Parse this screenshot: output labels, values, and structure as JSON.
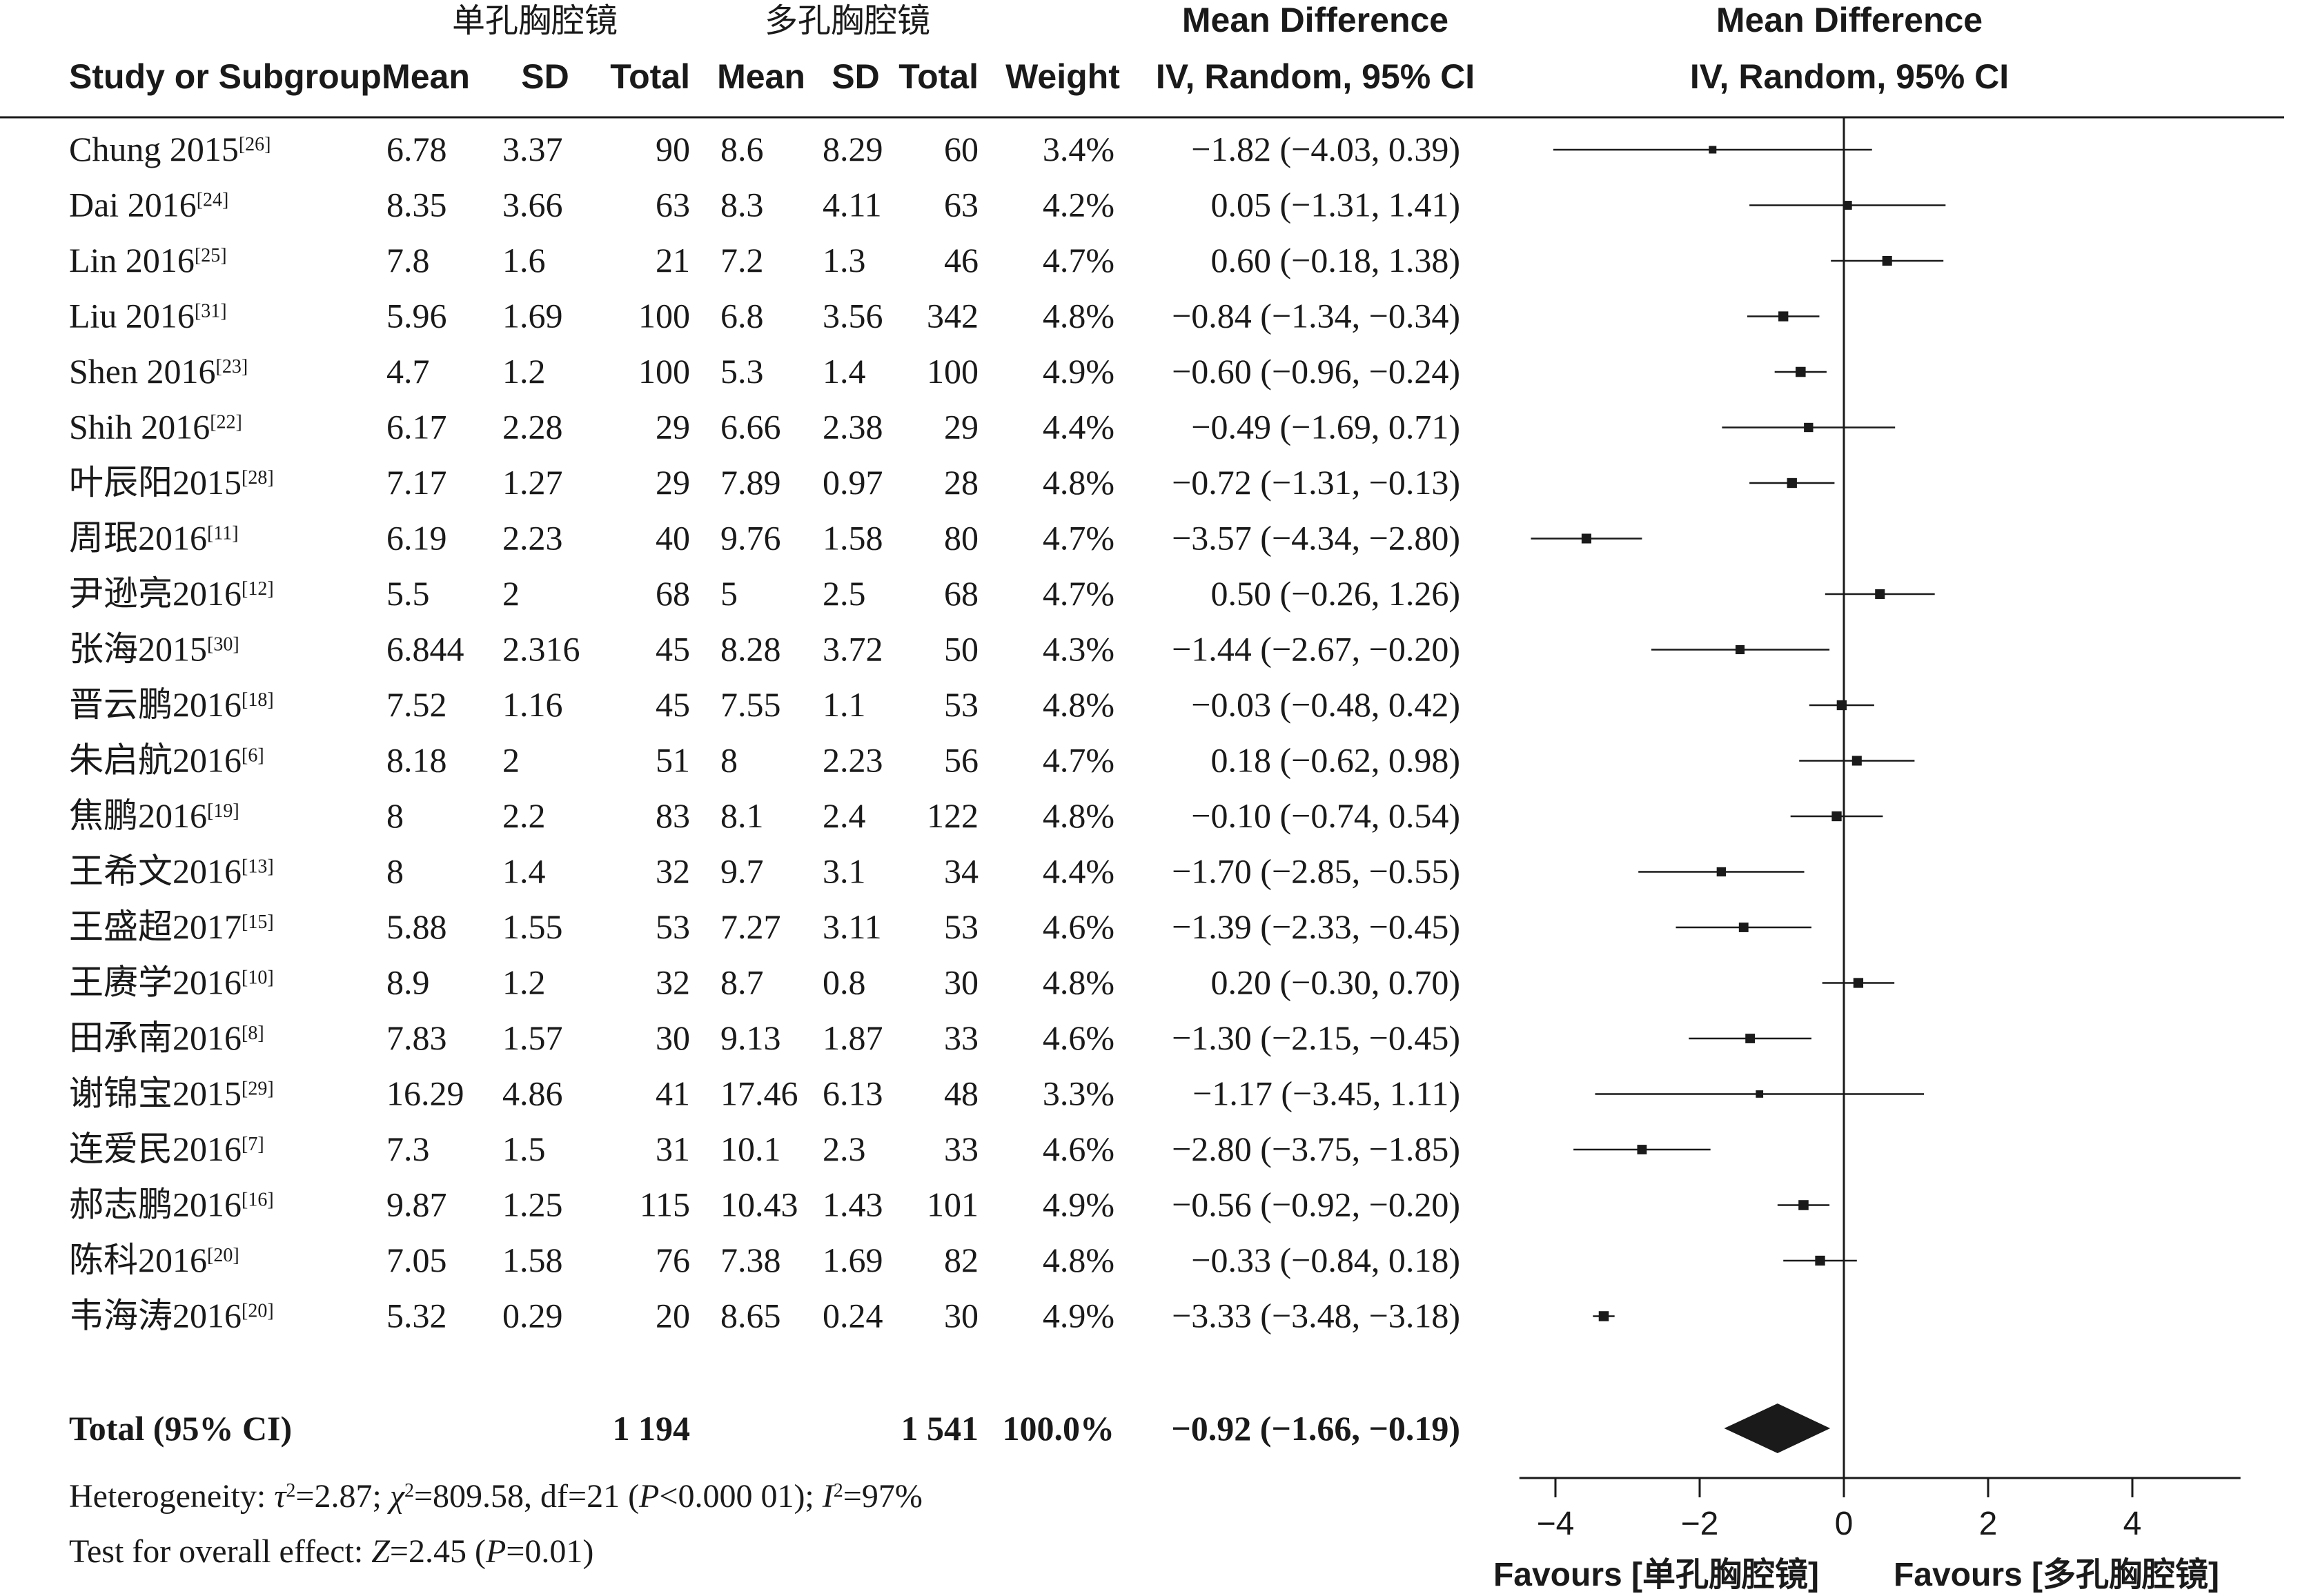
{
  "header": {
    "group1": "单孔胸腔镜",
    "group2": "多孔胸腔镜",
    "col_study": "Study or Subgroup",
    "col_mean1": "Mean",
    "col_sd1": "SD",
    "col_total1": "Total",
    "col_mean2": "Mean",
    "col_sd2": "SD",
    "col_total2": "Total",
    "col_weight": "Weight",
    "md_title": "Mean Difference",
    "md_sub": "IV, Random, 95% CI",
    "plot_title": "Mean Difference",
    "plot_sub": "IV, Random, 95% CI"
  },
  "studies": [
    {
      "name": "Chung 2015",
      "ref": "[26]",
      "mean1": "6.78",
      "sd1": "3.37",
      "total1": "90",
      "mean2": "8.6",
      "sd2": "8.29",
      "total2": "60",
      "weight": "3.4%",
      "ci_text": "−1.82 (−4.03, 0.39)"
    },
    {
      "name": "Dai 2016",
      "ref": "[24]",
      "mean1": "8.35",
      "sd1": "3.66",
      "total1": "63",
      "mean2": "8.3",
      "sd2": "4.11",
      "total2": "63",
      "weight": "4.2%",
      "ci_text": "0.05 (−1.31, 1.41)"
    },
    {
      "name": "Lin 2016",
      "ref": "[25]",
      "mean1": "7.8",
      "sd1": "1.6",
      "total1": "21",
      "mean2": "7.2",
      "sd2": "1.3",
      "total2": "46",
      "weight": "4.7%",
      "ci_text": "0.60 (−0.18, 1.38)"
    },
    {
      "name": "Liu 2016",
      "ref": "[31]",
      "mean1": "5.96",
      "sd1": "1.69",
      "total1": "100",
      "mean2": "6.8",
      "sd2": "3.56",
      "total2": "342",
      "weight": "4.8%",
      "ci_text": "−0.84 (−1.34, −0.34)"
    },
    {
      "name": "Shen 2016",
      "ref": "[23]",
      "mean1": "4.7",
      "sd1": "1.2",
      "total1": "100",
      "mean2": "5.3",
      "sd2": "1.4",
      "total2": "100",
      "weight": "4.9%",
      "ci_text": "−0.60 (−0.96, −0.24)"
    },
    {
      "name": "Shih 2016",
      "ref": "[22]",
      "mean1": "6.17",
      "sd1": "2.28",
      "total1": "29",
      "mean2": "6.66",
      "sd2": "2.38",
      "total2": "29",
      "weight": "4.4%",
      "ci_text": "−0.49 (−1.69, 0.71)"
    },
    {
      "name": "叶辰阳2015",
      "ref": "[28]",
      "mean1": "7.17",
      "sd1": "1.27",
      "total1": "29",
      "mean2": "7.89",
      "sd2": "0.97",
      "total2": "28",
      "weight": "4.8%",
      "ci_text": "−0.72 (−1.31, −0.13)"
    },
    {
      "name": "周珉2016",
      "ref": "[11]",
      "mean1": "6.19",
      "sd1": "2.23",
      "total1": "40",
      "mean2": "9.76",
      "sd2": "1.58",
      "total2": "80",
      "weight": "4.7%",
      "ci_text": "−3.57 (−4.34, −2.80)"
    },
    {
      "name": "尹逊亮2016",
      "ref": "[12]",
      "mean1": "5.5",
      "sd1": "2",
      "total1": "68",
      "mean2": "5",
      "sd2": "2.5",
      "total2": "68",
      "weight": "4.7%",
      "ci_text": "0.50 (−0.26, 1.26)"
    },
    {
      "name": "张海2015",
      "ref": "[30]",
      "mean1": "6.844",
      "sd1": "2.316",
      "total1": "45",
      "mean2": "8.28",
      "sd2": "3.72",
      "total2": "50",
      "weight": "4.3%",
      "ci_text": "−1.44 (−2.67, −0.20)"
    },
    {
      "name": "晋云鹏2016",
      "ref": "[18]",
      "mean1": "7.52",
      "sd1": "1.16",
      "total1": "45",
      "mean2": "7.55",
      "sd2": "1.1",
      "total2": "53",
      "weight": "4.8%",
      "ci_text": "−0.03 (−0.48, 0.42)"
    },
    {
      "name": "朱启航2016",
      "ref": "[6]",
      "mean1": "8.18",
      "sd1": "2",
      "total1": "51",
      "mean2": "8",
      "sd2": "2.23",
      "total2": "56",
      "weight": "4.7%",
      "ci_text": "0.18 (−0.62, 0.98)"
    },
    {
      "name": "焦鹏2016",
      "ref": "[19]",
      "mean1": "8",
      "sd1": "2.2",
      "total1": "83",
      "mean2": "8.1",
      "sd2": "2.4",
      "total2": "122",
      "weight": "4.8%",
      "ci_text": "−0.10 (−0.74, 0.54)"
    },
    {
      "name": "王希文2016",
      "ref": "[13]",
      "mean1": "8",
      "sd1": "1.4",
      "total1": "32",
      "mean2": "9.7",
      "sd2": "3.1",
      "total2": "34",
      "weight": "4.4%",
      "ci_text": "−1.70 (−2.85, −0.55)"
    },
    {
      "name": "王盛超2017",
      "ref": "[15]",
      "mean1": "5.88",
      "sd1": "1.55",
      "total1": "53",
      "mean2": "7.27",
      "sd2": "3.11",
      "total2": "53",
      "weight": "4.6%",
      "ci_text": "−1.39 (−2.33, −0.45)"
    },
    {
      "name": "王赓学2016",
      "ref": "[10]",
      "mean1": "8.9",
      "sd1": "1.2",
      "total1": "32",
      "mean2": "8.7",
      "sd2": "0.8",
      "total2": "30",
      "weight": "4.8%",
      "ci_text": "0.20 (−0.30, 0.70)"
    },
    {
      "name": "田承南2016",
      "ref": "[8]",
      "mean1": "7.83",
      "sd1": "1.57",
      "total1": "30",
      "mean2": "9.13",
      "sd2": "1.87",
      "total2": "33",
      "weight": "4.6%",
      "ci_text": "−1.30 (−2.15, −0.45)"
    },
    {
      "name": "谢锦宝2015",
      "ref": "[29]",
      "mean1": "16.29",
      "sd1": "4.86",
      "total1": "41",
      "mean2": "17.46",
      "sd2": "6.13",
      "total2": "48",
      "weight": "3.3%",
      "ci_text": "−1.17 (−3.45, 1.11)"
    },
    {
      "name": "连爱民2016",
      "ref": "[7]",
      "mean1": "7.3",
      "sd1": "1.5",
      "total1": "31",
      "mean2": "10.1",
      "sd2": "2.3",
      "total2": "33",
      "weight": "4.6%",
      "ci_text": "−2.80 (−3.75, −1.85)"
    },
    {
      "name": "郝志鹏2016",
      "ref": "[16]",
      "mean1": "9.87",
      "sd1": "1.25",
      "total1": "115",
      "mean2": "10.43",
      "sd2": "1.43",
      "total2": "101",
      "weight": "4.9%",
      "ci_text": "−0.56 (−0.92, −0.20)"
    },
    {
      "name": "陈科2016",
      "ref": "[20]",
      "mean1": "7.05",
      "sd1": "1.58",
      "total1": "76",
      "mean2": "7.38",
      "sd2": "1.69",
      "total2": "82",
      "weight": "4.8%",
      "ci_text": "−0.33 (−0.84, 0.18)"
    },
    {
      "name": "韦海涛2016",
      "ref": "[20]",
      "mean1": "5.32",
      "sd1": "0.29",
      "total1": "20",
      "mean2": "8.65",
      "sd2": "0.24",
      "total2": "30",
      "weight": "4.9%",
      "ci_text": "−3.33 (−3.48, −3.18)"
    }
  ],
  "total": {
    "label": "Total (95% CI)",
    "total1": "1 194",
    "total2": "1 541",
    "weight": "100.0%",
    "ci_text": "−0.92 (−1.66, −0.19)"
  },
  "footer": {
    "het_a": "Heterogeneity: ",
    "het_tau": "τ",
    "het_b": "=2.87; ",
    "het_chi": "χ",
    "het_c": "=809.58, df=21 (",
    "het_p": "P",
    "het_d": "<0.000 01); ",
    "het_i": "I",
    "het_e": "=97%",
    "sup2": "2",
    "test_a": "Test for overall effect: ",
    "test_z": "Z",
    "test_b": "=2.45 (",
    "test_p": "P",
    "test_c": "=0.01)"
  },
  "axis": {
    "ticks": [
      "−4",
      "−2",
      "0",
      "2",
      "4"
    ],
    "favours_left": "Favours [单孔胸腔镜]",
    "favours_right": "Favours [多孔胸腔镜]"
  },
  "chart_data": {
    "type": "forest",
    "xlim": [
      -4.5,
      5.5
    ],
    "ticks": [
      -4,
      -2,
      0,
      2,
      4
    ],
    "null_line": 0,
    "points": [
      {
        "md": -1.82,
        "lo": -4.03,
        "hi": 0.39,
        "weight": 3.4
      },
      {
        "md": 0.05,
        "lo": -1.31,
        "hi": 1.41,
        "weight": 4.2
      },
      {
        "md": 0.6,
        "lo": -0.18,
        "hi": 1.38,
        "weight": 4.7
      },
      {
        "md": -0.84,
        "lo": -1.34,
        "hi": -0.34,
        "weight": 4.8
      },
      {
        "md": -0.6,
        "lo": -0.96,
        "hi": -0.24,
        "weight": 4.9
      },
      {
        "md": -0.49,
        "lo": -1.69,
        "hi": 0.71,
        "weight": 4.4
      },
      {
        "md": -0.72,
        "lo": -1.31,
        "hi": -0.13,
        "weight": 4.8
      },
      {
        "md": -3.57,
        "lo": -4.34,
        "hi": -2.8,
        "weight": 4.7
      },
      {
        "md": 0.5,
        "lo": -0.26,
        "hi": 1.26,
        "weight": 4.7
      },
      {
        "md": -1.44,
        "lo": -2.67,
        "hi": -0.2,
        "weight": 4.3
      },
      {
        "md": -0.03,
        "lo": -0.48,
        "hi": 0.42,
        "weight": 4.8
      },
      {
        "md": 0.18,
        "lo": -0.62,
        "hi": 0.98,
        "weight": 4.7
      },
      {
        "md": -0.1,
        "lo": -0.74,
        "hi": 0.54,
        "weight": 4.8
      },
      {
        "md": -1.7,
        "lo": -2.85,
        "hi": -0.55,
        "weight": 4.4
      },
      {
        "md": -1.39,
        "lo": -2.33,
        "hi": -0.45,
        "weight": 4.6
      },
      {
        "md": 0.2,
        "lo": -0.3,
        "hi": 0.7,
        "weight": 4.8
      },
      {
        "md": -1.3,
        "lo": -2.15,
        "hi": -0.45,
        "weight": 4.6
      },
      {
        "md": -1.17,
        "lo": -3.45,
        "hi": 1.11,
        "weight": 3.3
      },
      {
        "md": -2.8,
        "lo": -3.75,
        "hi": -1.85,
        "weight": 4.6
      },
      {
        "md": -0.56,
        "lo": -0.92,
        "hi": -0.2,
        "weight": 4.9
      },
      {
        "md": -0.33,
        "lo": -0.84,
        "hi": 0.18,
        "weight": 4.8
      },
      {
        "md": -3.33,
        "lo": -3.48,
        "hi": -3.18,
        "weight": 4.9
      }
    ],
    "pooled": {
      "md": -0.92,
      "lo": -1.66,
      "hi": -0.19
    }
  }
}
